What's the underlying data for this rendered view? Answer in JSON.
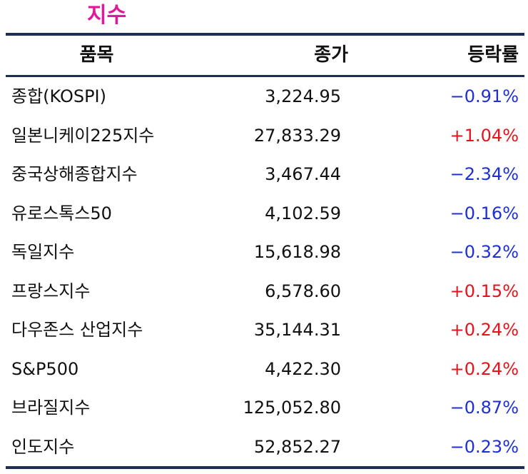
{
  "title": "지수",
  "columns": {
    "item": "품목",
    "close": "종가",
    "change": "등락률"
  },
  "rows": [
    {
      "name": "종합(KOSPI)",
      "close": "3,224.95",
      "change": "−0.91%",
      "direction": "down"
    },
    {
      "name": "일본니케이225지수",
      "close": "27,833.29",
      "change": "+1.04%",
      "direction": "up"
    },
    {
      "name": "중국상해종합지수",
      "close": "3,467.44",
      "change": "−2.34%",
      "direction": "down"
    },
    {
      "name": "유로스톡스50",
      "close": "4,102.59",
      "change": "−0.16%",
      "direction": "down"
    },
    {
      "name": "독일지수",
      "close": "15,618.98",
      "change": "−0.32%",
      "direction": "down"
    },
    {
      "name": "프랑스지수",
      "close": "6,578.60",
      "change": "+0.15%",
      "direction": "up"
    },
    {
      "name": "다우존스 산업지수",
      "close": "35,144.31",
      "change": "+0.24%",
      "direction": "up"
    },
    {
      "name": "S&P500",
      "close": "4,422.30",
      "change": "+0.24%",
      "direction": "up"
    },
    {
      "name": "브라질지수",
      "close": "125,052.80",
      "change": "−0.87%",
      "direction": "down"
    },
    {
      "name": "인도지수",
      "close": "52,852.27",
      "change": "−0.23%",
      "direction": "down"
    }
  ],
  "colors": {
    "title": "#e0199b",
    "rule": "#1d2d57",
    "up": "#e3141c",
    "down": "#1f2fd6"
  }
}
